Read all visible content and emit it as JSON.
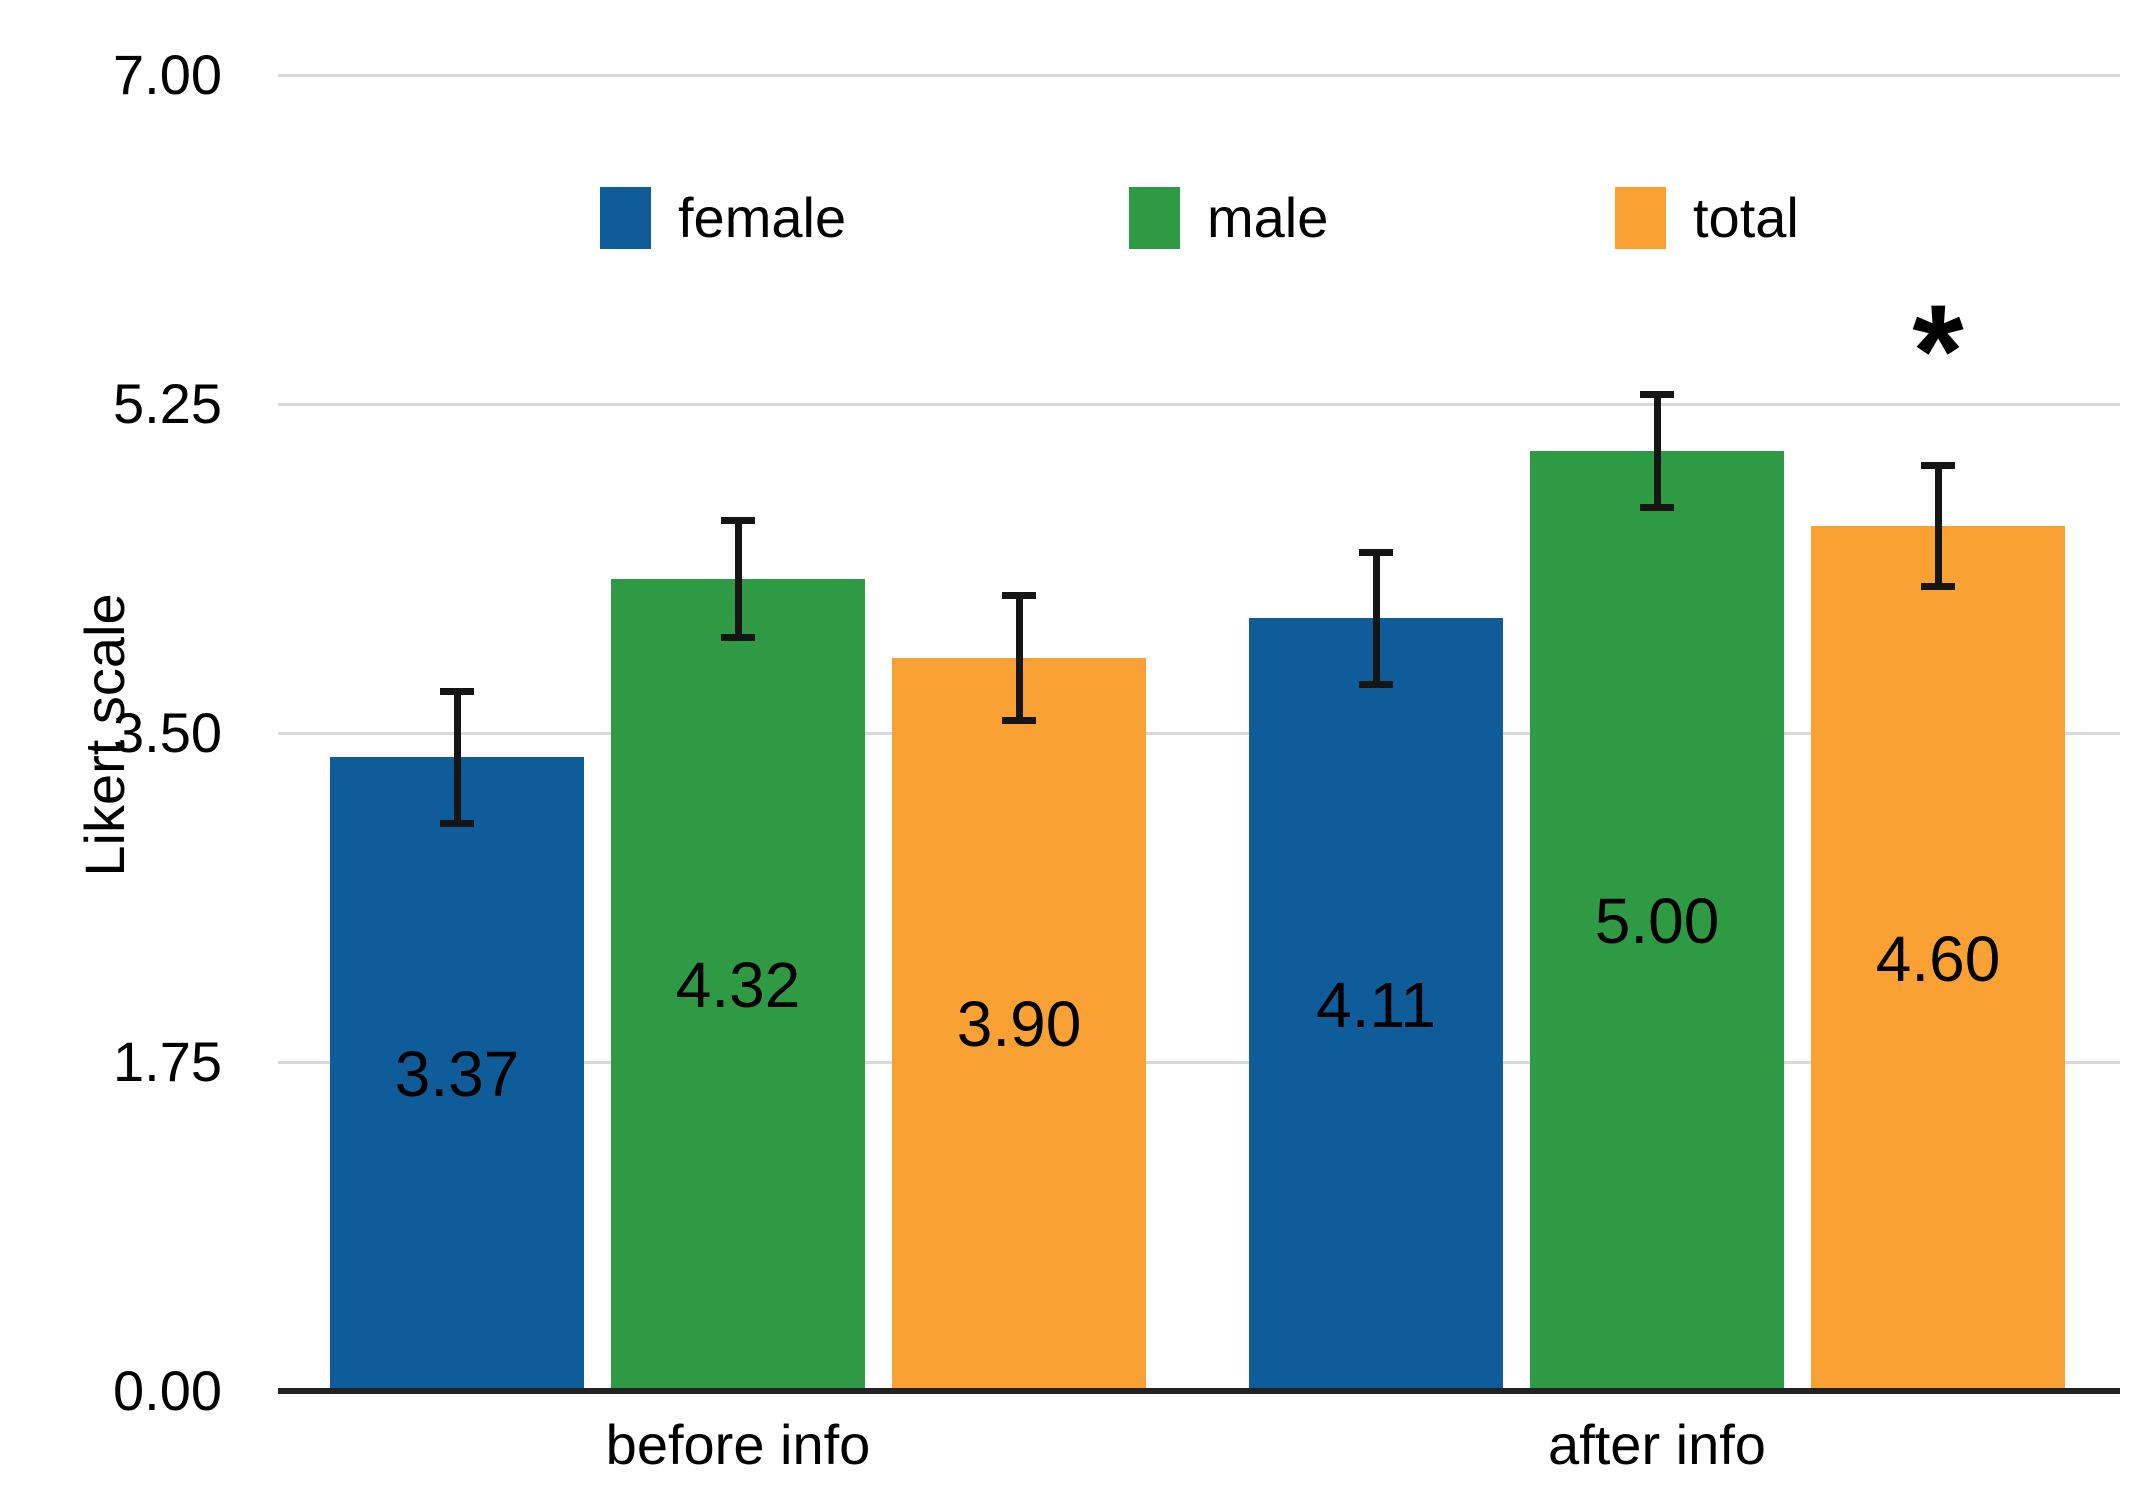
{
  "background": "#FFFFFF",
  "chart_data": {
    "type": "bar",
    "title": "",
    "ylabel": "Likert scale",
    "xlabel": "",
    "ylim": [
      0,
      7
    ],
    "yticks": [
      0,
      1.75,
      3.5,
      5.25,
      7
    ],
    "ytick_labels": [
      "0.00",
      "1.75",
      "3.50",
      "5.25",
      "7.00"
    ],
    "categories": [
      "before info",
      "after info"
    ],
    "grid": "horizontal-gridlines-on",
    "legend_position": "top-inside",
    "series": [
      {
        "name": "female",
        "color": "#0E5C9A",
        "values": [
          3.37,
          4.11
        ],
        "value_labels": [
          "3.37",
          "4.11"
        ],
        "errors": [
          0.37,
          0.37
        ]
      },
      {
        "name": "male",
        "color": "#2F9A44",
        "values": [
          4.32,
          5.0
        ],
        "value_labels": [
          "4.32",
          "5.00"
        ],
        "errors": [
          0.33,
          0.32
        ]
      },
      {
        "name": "total",
        "color": "#F9A233",
        "values": [
          3.9,
          4.6
        ],
        "value_labels": [
          "3.90",
          "4.60"
        ],
        "errors": [
          0.35,
          0.34
        ]
      }
    ],
    "annotation": {
      "text": "*",
      "series": "total",
      "category": "after info"
    },
    "colors": {
      "gridline": "#D9D9D9",
      "axis_line": "#222222",
      "error_bar": "#151515",
      "text": "#000000"
    }
  }
}
